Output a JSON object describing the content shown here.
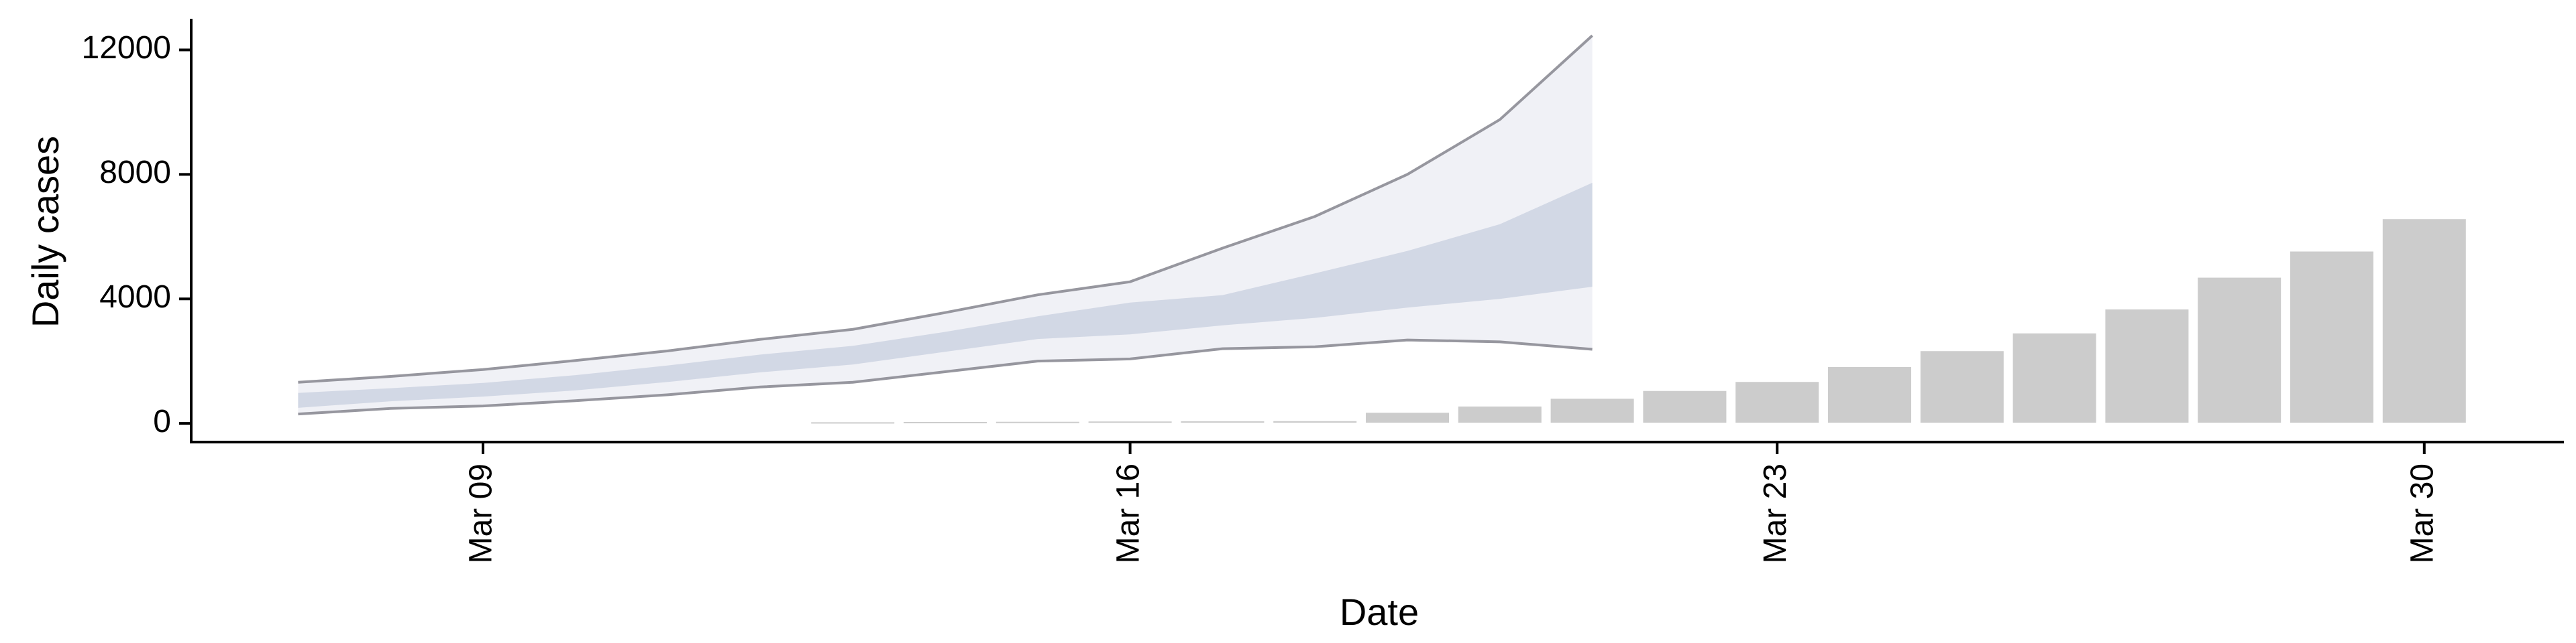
{
  "chart_data": {
    "type": "bar",
    "xlabel": "Date",
    "ylabel": "Daily cases",
    "ylim": [
      -600,
      13000
    ],
    "y_ticks": [
      0,
      4000,
      8000,
      12000
    ],
    "y_tick_labels": [
      "0",
      "4000",
      "8000",
      "12000"
    ],
    "x_ticks": [
      "Mar 09",
      "Mar 16",
      "Mar 23",
      "Mar 30"
    ],
    "x_range": [
      "Mar 05",
      "Apr 01"
    ],
    "grid": false,
    "legend": "none",
    "colors": {
      "bars": "#cccccc",
      "band_outer": "#eef0f5",
      "band_inner": "#c8cfdf",
      "outline": "#8c8c95",
      "axis": "#000000"
    },
    "bars": {
      "dates": [
        "Mar 13",
        "Mar 14",
        "Mar 15",
        "Mar 16",
        "Mar 17",
        "Mar 18",
        "Mar 19",
        "Mar 20",
        "Mar 21",
        "Mar 22",
        "Mar 23",
        "Mar 24",
        "Mar 25",
        "Mar 26",
        "Mar 27",
        "Mar 28",
        "Mar 29",
        "Mar 30"
      ],
      "values": [
        15,
        25,
        30,
        40,
        45,
        50,
        320,
        520,
        770,
        1020,
        1310,
        1790,
        2300,
        2870,
        3640,
        4660,
        5500,
        6540
      ]
    },
    "estimate_bands": {
      "dates": [
        "Mar 07",
        "Mar 08",
        "Mar 09",
        "Mar 10",
        "Mar 11",
        "Mar 12",
        "Mar 13",
        "Mar 14",
        "Mar 15",
        "Mar 16",
        "Mar 17",
        "Mar 18",
        "Mar 19",
        "Mar 20",
        "Mar 21"
      ],
      "outer_low": [
        300,
        480,
        560,
        730,
        920,
        1170,
        1320,
        1660,
        2000,
        2070,
        2400,
        2460,
        2680,
        2620,
        2380
      ],
      "outer_high": [
        1320,
        1510,
        1730,
        2020,
        2330,
        2700,
        3020,
        3560,
        4130,
        4550,
        5630,
        6650,
        8000,
        9760,
        12460
      ],
      "inner_low": [
        500,
        710,
        860,
        1060,
        1330,
        1640,
        1890,
        2300,
        2710,
        2860,
        3150,
        3390,
        3720,
        4000,
        4390
      ],
      "inner_high": [
        980,
        1130,
        1300,
        1550,
        1860,
        2210,
        2490,
        2940,
        3440,
        3880,
        4120,
        4820,
        5540,
        6400,
        7730
      ]
    }
  }
}
